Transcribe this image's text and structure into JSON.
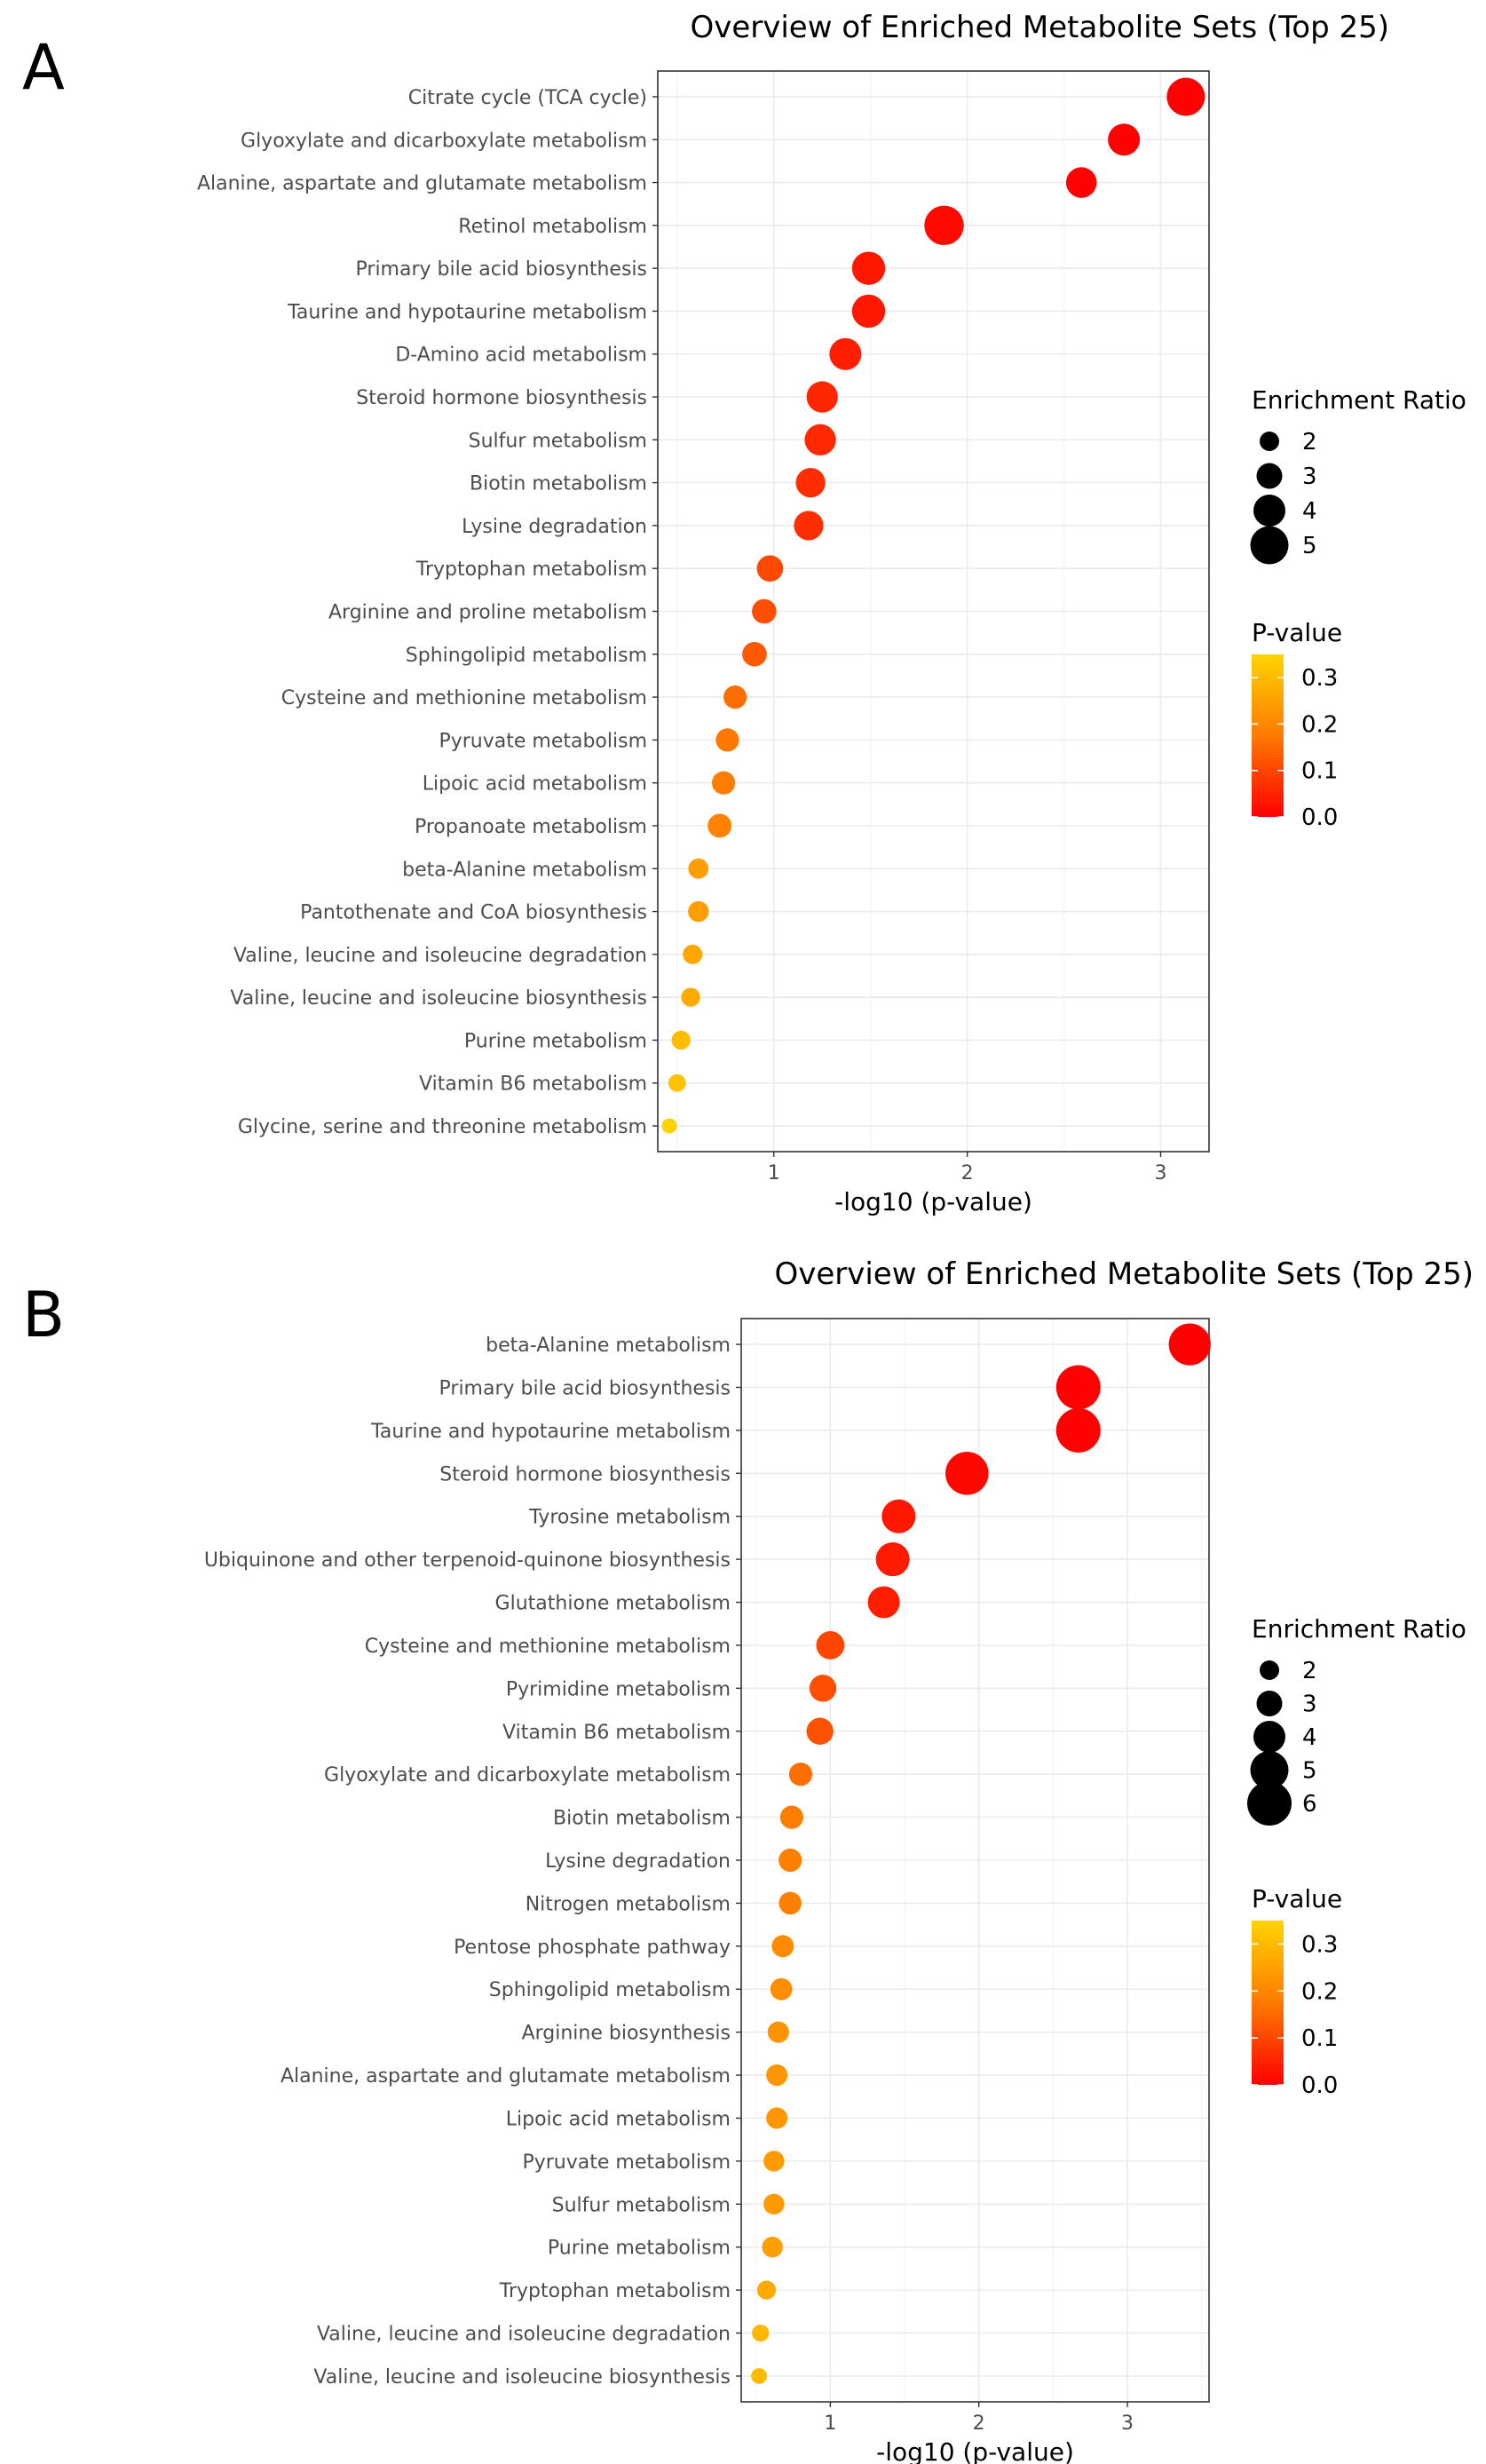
{
  "chart_data": [
    {
      "panel": "A",
      "type": "scatter",
      "title": "Overview of Enriched Metabolite Sets (Top 25)",
      "xlabel": "-log10 (p-value)",
      "ylabel": "",
      "xlim": [
        0.4,
        3.25
      ],
      "xticks": [
        1,
        2,
        3
      ],
      "grid": true,
      "categories": [
        "Citrate cycle (TCA cycle)",
        "Glyoxylate and dicarboxylate metabolism",
        "Alanine, aspartate and glutamate metabolism",
        "Retinol metabolism",
        "Primary bile acid biosynthesis",
        "Taurine and hypotaurine metabolism",
        "D-Amino acid metabolism",
        "Steroid hormone biosynthesis",
        "Sulfur metabolism",
        "Biotin metabolism",
        "Lysine degradation",
        "Tryptophan metabolism",
        "Arginine and proline metabolism",
        "Sphingolipid metabolism",
        "Cysteine and methionine metabolism",
        "Pyruvate metabolism",
        "Lipoic acid metabolism",
        "Propanoate metabolism",
        "beta-Alanine metabolism",
        "Pantothenate and CoA biosynthesis",
        "Valine, leucine and isoleucine degradation",
        "Valine, leucine and isoleucine biosynthesis",
        "Purine metabolism",
        "Vitamin B6 metabolism",
        "Glycine, serine and threonine metabolism"
      ],
      "x": [
        3.13,
        2.81,
        2.59,
        1.88,
        1.49,
        1.49,
        1.37,
        1.25,
        1.24,
        1.19,
        1.18,
        0.98,
        0.95,
        0.9,
        0.8,
        0.76,
        0.74,
        0.72,
        0.61,
        0.61,
        0.58,
        0.57,
        0.52,
        0.5,
        0.46
      ],
      "enrichment_ratio": [
        5.0,
        4.0,
        3.8,
        5.2,
        4.2,
        4.2,
        4.0,
        3.9,
        3.9,
        3.6,
        3.6,
        3.1,
        2.8,
        2.8,
        2.6,
        2.6,
        2.6,
        2.7,
        2.1,
        2.2,
        2.0,
        1.9,
        1.9,
        1.7,
        1.3
      ],
      "size_legend": {
        "title": "Enrichment Ratio",
        "values": [
          2,
          3,
          4,
          5
        ],
        "labels": [
          "2",
          "3",
          "4",
          "5"
        ]
      },
      "color_legend": {
        "title": "P-value",
        "ticks": [
          "0.3",
          "0.2",
          "0.1",
          "0.0"
        ],
        "range": [
          0.0,
          0.35
        ],
        "colors": [
          "#ff0000",
          "#ffd000"
        ]
      }
    },
    {
      "panel": "B",
      "type": "scatter",
      "title": "Overview of Enriched Metabolite Sets (Top 25)",
      "xlabel": "-log10 (p-value)",
      "ylabel": "",
      "xlim": [
        0.4,
        3.55
      ],
      "xticks": [
        1,
        2,
        3
      ],
      "grid": true,
      "categories": [
        "beta-Alanine metabolism",
        "Primary bile acid biosynthesis",
        "Taurine and hypotaurine metabolism",
        "Steroid hormone biosynthesis",
        "Tyrosine metabolism",
        "Ubiquinone and other terpenoid-quinone biosynthesis",
        "Glutathione metabolism",
        "Cysteine and methionine metabolism",
        "Pyrimidine metabolism",
        "Vitamin B6 metabolism",
        "Glyoxylate and dicarboxylate metabolism",
        "Biotin metabolism",
        "Lysine degradation",
        "Nitrogen metabolism",
        "Pentose phosphate pathway",
        "Sphingolipid metabolism",
        "Arginine biosynthesis",
        "Alanine, aspartate and glutamate metabolism",
        "Lipoic acid metabolism",
        "Pyruvate metabolism",
        "Sulfur metabolism",
        "Purine metabolism",
        "Tryptophan metabolism",
        "Valine, leucine and isoleucine degradation",
        "Valine, leucine and isoleucine biosynthesis"
      ],
      "x": [
        3.42,
        2.67,
        2.67,
        1.92,
        1.46,
        1.42,
        1.36,
        1.0,
        0.95,
        0.93,
        0.8,
        0.74,
        0.73,
        0.73,
        0.68,
        0.67,
        0.65,
        0.64,
        0.64,
        0.62,
        0.62,
        0.61,
        0.57,
        0.53,
        0.52
      ],
      "enrichment_ratio": [
        5.6,
        6.0,
        6.0,
        5.8,
        4.3,
        4.3,
        4.0,
        3.4,
        3.2,
        3.2,
        2.6,
        2.6,
        2.6,
        2.5,
        2.4,
        2.4,
        2.3,
        2.3,
        2.3,
        2.2,
        2.2,
        2.2,
        1.9,
        1.6,
        1.4
      ],
      "size_legend": {
        "title": "Enrichment Ratio",
        "values": [
          2,
          3,
          4,
          5,
          6
        ],
        "labels": [
          "2",
          "3",
          "4",
          "5",
          "6"
        ]
      },
      "color_legend": {
        "title": "P-value",
        "ticks": [
          "0.3",
          "0.2",
          "0.1",
          "0.0"
        ],
        "range": [
          0.0,
          0.35
        ],
        "colors": [
          "#ff0000",
          "#ffd000"
        ]
      }
    }
  ]
}
